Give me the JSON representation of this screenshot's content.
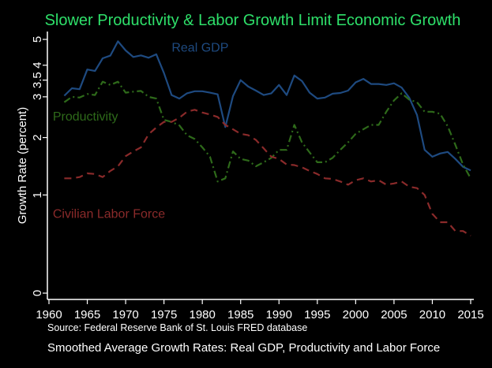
{
  "chart_data": {
    "type": "line",
    "title": "Slower Productivity & Labor Growth Limit Economic Growth",
    "ylabel": "Growth Rate (percent)",
    "xlabel": "",
    "source": "Source: Federal Reserve Bank of St. Louis FRED database",
    "caption": "Smoothed Average Growth Rates: Real GDP, Productivity and Labor Force",
    "xlim": [
      1960,
      2015
    ],
    "ylim": [
      0,
      5
    ],
    "scale": "log1p",
    "grid": false,
    "x_ticks": [
      1960,
      1965,
      1970,
      1975,
      1980,
      1985,
      1990,
      1995,
      2000,
      2005,
      2010,
      2015
    ],
    "y_ticks": [
      {
        "value": 0,
        "label": "0"
      },
      {
        "value": 1,
        "label": "1"
      },
      {
        "value": 2,
        "label": "2"
      },
      {
        "value": 3,
        "label": "3"
      },
      {
        "value": 3.5,
        "label": "3.5"
      },
      {
        "value": 4,
        "label": "4"
      },
      {
        "value": 5,
        "label": "5"
      }
    ],
    "series": [
      {
        "name": "Real GDP",
        "color": "#1e4a80",
        "dash": "solid",
        "label_anchor": [
          1976,
          4.5
        ],
        "x": [
          1962,
          1963,
          1964,
          1965,
          1966,
          1967,
          1968,
          1969,
          1970,
          1971,
          1972,
          1973,
          1974,
          1975,
          1976,
          1977,
          1978,
          1979,
          1980,
          1981,
          1982,
          1983,
          1984,
          1985,
          1986,
          1987,
          1988,
          1989,
          1990,
          1991,
          1992,
          1993,
          1994,
          1995,
          1996,
          1997,
          1998,
          1999,
          2000,
          2001,
          2002,
          2003,
          2004,
          2005,
          2006,
          2007,
          2008,
          2009,
          2010,
          2011,
          2012,
          2013,
          2014,
          2015
        ],
        "values": [
          3.03,
          3.25,
          3.22,
          3.85,
          3.8,
          4.25,
          4.35,
          4.92,
          4.55,
          4.3,
          4.36,
          4.27,
          4.4,
          3.73,
          3.05,
          2.95,
          3.1,
          3.16,
          3.16,
          3.12,
          3.07,
          2.23,
          3.02,
          3.5,
          3.3,
          3.18,
          3.05,
          3.1,
          3.35,
          3.05,
          3.65,
          3.47,
          3.12,
          2.95,
          2.98,
          3.09,
          3.11,
          3.18,
          3.43,
          3.54,
          3.38,
          3.38,
          3.35,
          3.4,
          3.27,
          2.97,
          2.52,
          1.75,
          1.62,
          1.68,
          1.71,
          1.58,
          1.44,
          1.38
        ]
      },
      {
        "name": "Productivity",
        "color": "#2e6a1a",
        "dash": "dashdot",
        "label_anchor": [
          1960.5,
          2.38
        ],
        "x": [
          1962,
          1963,
          1964,
          1965,
          1966,
          1967,
          1968,
          1969,
          1970,
          1971,
          1972,
          1973,
          1974,
          1975,
          1976,
          1977,
          1978,
          1979,
          1980,
          1981,
          1982,
          1983,
          1984,
          1985,
          1986,
          1987,
          1988,
          1989,
          1990,
          1991,
          1992,
          1993,
          1994,
          1995,
          1996,
          1997,
          1998,
          1999,
          2000,
          2001,
          2002,
          2003,
          2004,
          2005,
          2006,
          2007,
          2008,
          2009,
          2010,
          2011,
          2012,
          2013,
          2014,
          2015
        ],
        "values": [
          2.85,
          3.0,
          2.98,
          3.08,
          3.05,
          3.45,
          3.35,
          3.45,
          3.12,
          3.15,
          3.17,
          3.0,
          2.95,
          2.4,
          2.35,
          2.27,
          2.05,
          1.97,
          1.8,
          1.62,
          1.2,
          1.25,
          1.72,
          1.58,
          1.55,
          1.45,
          1.52,
          1.6,
          1.75,
          1.75,
          2.28,
          1.9,
          1.7,
          1.52,
          1.52,
          1.6,
          1.75,
          1.9,
          2.08,
          2.18,
          2.28,
          2.28,
          2.6,
          2.9,
          3.1,
          2.92,
          2.85,
          2.6,
          2.6,
          2.55,
          2.25,
          1.85,
          1.48,
          1.25
        ]
      },
      {
        "name": "Civilian Labor Force",
        "color": "#8a2a2a",
        "dash": "dashed",
        "label_anchor": [
          1960.5,
          0.7
        ],
        "x": [
          1962,
          1963,
          1964,
          1965,
          1966,
          1967,
          1968,
          1969,
          1970,
          1971,
          1972,
          1973,
          1974,
          1975,
          1976,
          1977,
          1978,
          1979,
          1980,
          1981,
          1982,
          1983,
          1984,
          1985,
          1986,
          1987,
          1988,
          1989,
          1990,
          1991,
          1992,
          1993,
          1994,
          1995,
          1996,
          1997,
          1998,
          1999,
          2000,
          2001,
          2002,
          2003,
          2004,
          2005,
          2006,
          2007,
          2008,
          2009,
          2010,
          2011,
          2012,
          2013,
          2014,
          2015
        ],
        "values": [
          1.25,
          1.25,
          1.27,
          1.33,
          1.32,
          1.27,
          1.37,
          1.45,
          1.63,
          1.72,
          1.8,
          2.07,
          2.22,
          2.35,
          2.35,
          2.45,
          2.6,
          2.65,
          2.58,
          2.53,
          2.47,
          2.28,
          2.18,
          2.08,
          2.05,
          1.95,
          1.78,
          1.62,
          1.58,
          1.48,
          1.47,
          1.43,
          1.37,
          1.32,
          1.25,
          1.24,
          1.2,
          1.15,
          1.22,
          1.25,
          1.2,
          1.22,
          1.15,
          1.17,
          1.2,
          1.12,
          1.1,
          1.0,
          0.75,
          0.65,
          0.65,
          0.55,
          0.55,
          0.5
        ]
      }
    ]
  }
}
